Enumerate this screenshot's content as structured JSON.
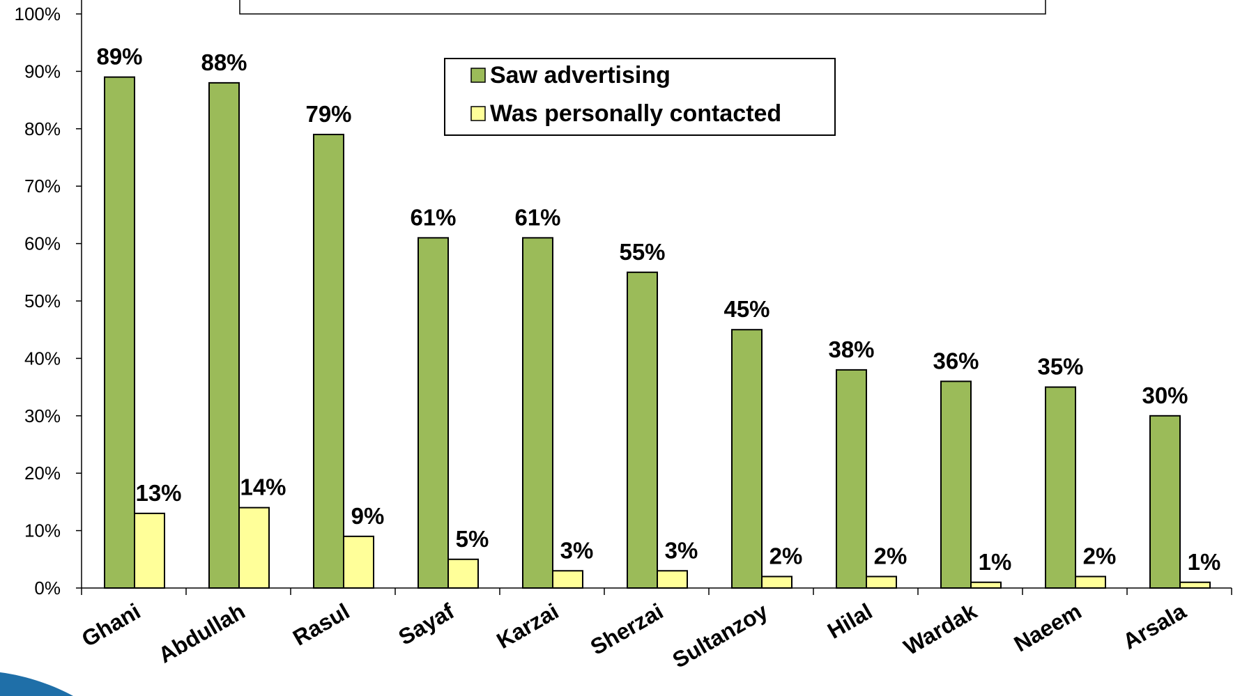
{
  "chart_data": {
    "type": "bar",
    "categories": [
      "Ghani",
      "Abdullah",
      "Rasul",
      "Sayaf",
      "Karzai",
      "Sherzai",
      "Sultanzoy",
      "Hilal",
      "Wardak",
      "Naeem",
      "Arsala"
    ],
    "series": [
      {
        "name": "Saw advertising",
        "values": [
          89,
          88,
          79,
          61,
          61,
          55,
          45,
          38,
          36,
          35,
          30
        ],
        "color": "#9BBB59"
      },
      {
        "name": "Was personally contacted",
        "values": [
          13,
          14,
          9,
          5,
          3,
          3,
          2,
          2,
          1,
          2,
          1
        ],
        "color": "#FFFF99"
      }
    ],
    "value_format": "percent",
    "ylim": [
      0,
      100
    ],
    "yticks": [
      "0%",
      "10%",
      "20%",
      "30%",
      "40%",
      "50%",
      "60%",
      "70%",
      "80%",
      "90%",
      "100%"
    ],
    "title": "",
    "xlabel": "",
    "ylabel": "",
    "legend": "top-center",
    "grid": false
  }
}
